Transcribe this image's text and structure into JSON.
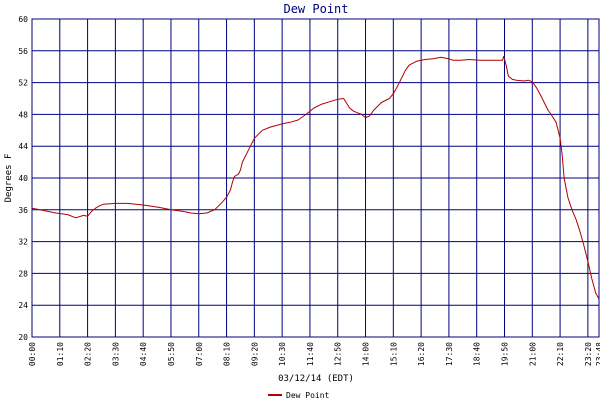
{
  "chart_data": {
    "type": "line",
    "title": "Dew Point",
    "xlabel": "03/12/14 (EDT)",
    "ylabel": "Degrees F",
    "ylim": [
      20,
      60
    ],
    "yticks": [
      20,
      24,
      28,
      32,
      36,
      40,
      44,
      48,
      52,
      56,
      60
    ],
    "xlim": [
      0,
      1428
    ],
    "xticks": [
      {
        "t": 0,
        "label": "00:00"
      },
      {
        "t": 70,
        "label": "01:10"
      },
      {
        "t": 140,
        "label": "02:20"
      },
      {
        "t": 210,
        "label": "03:30"
      },
      {
        "t": 280,
        "label": "04:40"
      },
      {
        "t": 350,
        "label": "05:50"
      },
      {
        "t": 420,
        "label": "07:00"
      },
      {
        "t": 490,
        "label": "08:10"
      },
      {
        "t": 560,
        "label": "09:20"
      },
      {
        "t": 630,
        "label": "10:30"
      },
      {
        "t": 700,
        "label": "11:40"
      },
      {
        "t": 770,
        "label": "12:50"
      },
      {
        "t": 840,
        "label": "14:00"
      },
      {
        "t": 910,
        "label": "15:10"
      },
      {
        "t": 980,
        "label": "16:20"
      },
      {
        "t": 1050,
        "label": "17:30"
      },
      {
        "t": 1120,
        "label": "18:40"
      },
      {
        "t": 1190,
        "label": "19:50"
      },
      {
        "t": 1260,
        "label": "21:00"
      },
      {
        "t": 1330,
        "label": "22:10"
      },
      {
        "t": 1400,
        "label": "23:20"
      },
      {
        "t": 1428,
        "label": "23:48"
      }
    ],
    "grid": true,
    "legend_position": "bottom-center",
    "colors": {
      "series": "#b00000",
      "grid": "#00007f",
      "title": "#00007f"
    },
    "series": [
      {
        "name": "Dew Point",
        "x": [
          0,
          20,
          40,
          60,
          90,
          110,
          130,
          140,
          150,
          160,
          170,
          180,
          210,
          240,
          280,
          320,
          350,
          380,
          400,
          420,
          440,
          460,
          470,
          480,
          490,
          500,
          505,
          510,
          520,
          525,
          530,
          540,
          550,
          560,
          570,
          580,
          600,
          630,
          650,
          670,
          690,
          710,
          730,
          750,
          770,
          785,
          800,
          810,
          820,
          830,
          840,
          850,
          860,
          870,
          880,
          900,
          910,
          920,
          930,
          940,
          950,
          970,
          990,
          1010,
          1020,
          1030,
          1040,
          1050,
          1060,
          1080,
          1100,
          1130,
          1160,
          1185,
          1188,
          1192,
          1195,
          1198,
          1200,
          1210,
          1220,
          1240,
          1250,
          1260,
          1270,
          1280,
          1290,
          1300,
          1310,
          1320,
          1330,
          1335,
          1340,
          1350,
          1360,
          1370,
          1380,
          1390,
          1400,
          1410,
          1420,
          1428
        ],
        "y": [
          36.2,
          36.0,
          35.8,
          35.6,
          35.4,
          35.0,
          35.3,
          35.2,
          35.8,
          36.2,
          36.5,
          36.7,
          36.8,
          36.8,
          36.6,
          36.3,
          36.0,
          35.8,
          35.6,
          35.5,
          35.6,
          36.0,
          36.5,
          37.0,
          37.6,
          38.5,
          39.5,
          40.2,
          40.5,
          41.0,
          42.0,
          43.0,
          44.0,
          45.0,
          45.5,
          46.0,
          46.4,
          46.8,
          47.0,
          47.3,
          48.0,
          48.8,
          49.3,
          49.6,
          49.9,
          50.0,
          48.8,
          48.4,
          48.2,
          48.0,
          47.6,
          47.8,
          48.5,
          49.0,
          49.5,
          50.0,
          50.6,
          51.5,
          52.5,
          53.5,
          54.2,
          54.7,
          54.9,
          55.0,
          55.1,
          55.2,
          55.1,
          55.0,
          54.8,
          54.8,
          54.9,
          54.8,
          54.8,
          54.8,
          55.3,
          54.6,
          54.0,
          53.2,
          52.8,
          52.4,
          52.3,
          52.2,
          52.3,
          52.1,
          51.4,
          50.5,
          49.5,
          48.5,
          47.8,
          47.0,
          45.0,
          43.0,
          40.0,
          37.5,
          36.0,
          34.8,
          33.3,
          31.5,
          29.5,
          27.3,
          25.5,
          24.8
        ]
      }
    ]
  }
}
